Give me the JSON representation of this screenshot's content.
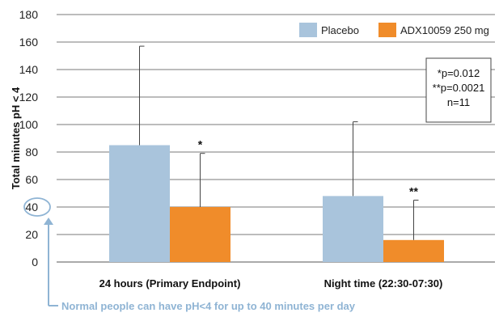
{
  "chart_data": {
    "type": "bar",
    "categories": [
      "24 hours (Primary Endpoint)",
      "Night time (22:30-07:30)"
    ],
    "series": [
      {
        "name": "Placebo",
        "color": "#a9c4dc",
        "values": [
          85,
          48
        ],
        "error_upper": [
          157,
          102
        ]
      },
      {
        "name": "ADX10059 250 mg",
        "color": "#f08c2a",
        "values": [
          40,
          16
        ],
        "error_upper": [
          79,
          45
        ]
      }
    ],
    "significance_marks": [
      {
        "category_index": 0,
        "series_index": 1,
        "label": "*"
      },
      {
        "category_index": 1,
        "series_index": 1,
        "label": "**"
      }
    ],
    "ylabel": "Total minutes pH < 4",
    "xlabel": "",
    "ylim": [
      0,
      180
    ],
    "yticks": [
      0,
      20,
      40,
      60,
      80,
      100,
      120,
      140,
      160,
      180
    ],
    "grid": true,
    "legend_placement": "top-right",
    "stats_box": [
      "*p=0.012",
      "**p=0.0021",
      "n=11"
    ],
    "highlight_tick": 40,
    "highlight_color": "#8fb4d4",
    "annotation": "Normal people can have pH<4 for up to 40 minutes per day"
  }
}
